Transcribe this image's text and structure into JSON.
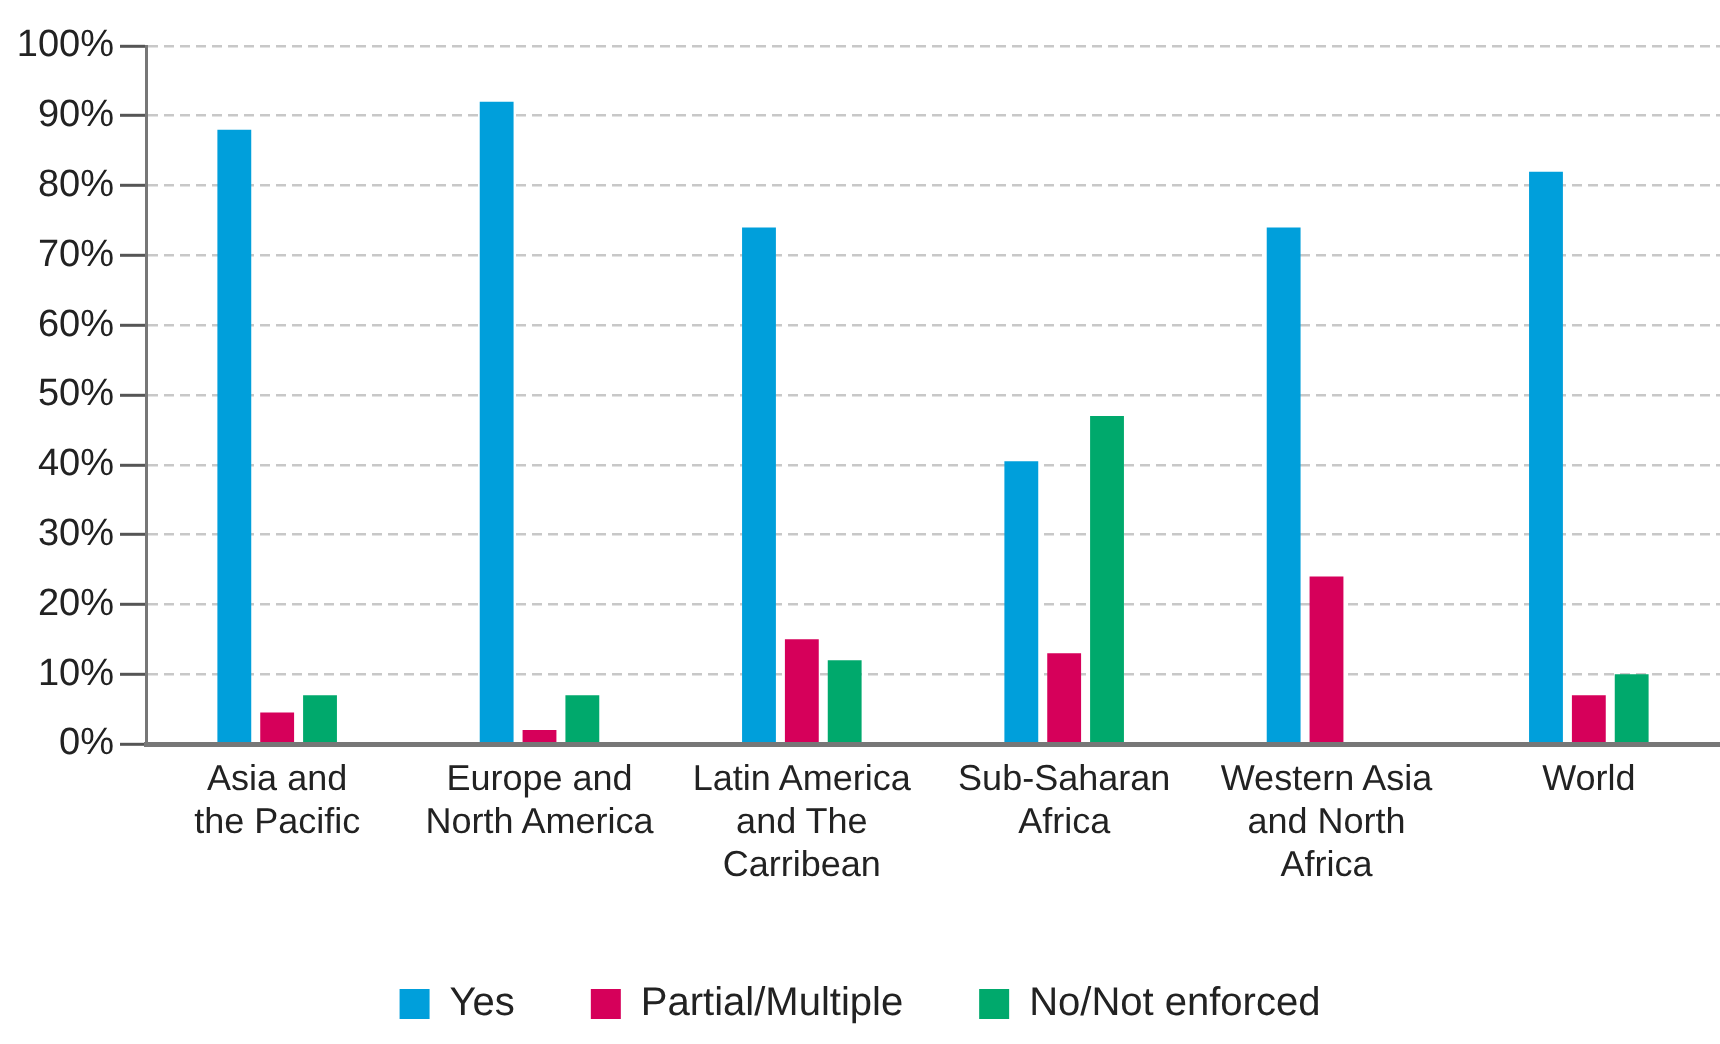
{
  "chart_data": {
    "type": "bar",
    "categories": [
      "Asia and\nthe Pacific",
      "Europe and\nNorth America",
      "Latin America\nand The\nCarribean",
      "Sub-Saharan\nAfrica",
      "Western Asia\nand North\nAfrica",
      "World"
    ],
    "series": [
      {
        "name": "Yes",
        "color": "#009fdb",
        "values": [
          88,
          92,
          74,
          40.5,
          74,
          82
        ]
      },
      {
        "name": "Partial/Multiple",
        "color": "#d6005a",
        "values": [
          4.5,
          2,
          15,
          13,
          24,
          7
        ]
      },
      {
        "name": "No/Not enforced",
        "color": "#00a96c",
        "values": [
          7,
          7,
          12,
          47,
          null,
          10
        ]
      }
    ],
    "ylim": [
      0,
      100
    ],
    "yticks": [
      {
        "value": 0,
        "label": "0%"
      },
      {
        "value": 10,
        "label": "10%"
      },
      {
        "value": 20,
        "label": "20%"
      },
      {
        "value": 30,
        "label": "30%"
      },
      {
        "value": 40,
        "label": "40%"
      },
      {
        "value": 50,
        "label": "50%"
      },
      {
        "value": 60,
        "label": "60%"
      },
      {
        "value": 70,
        "label": "70%"
      },
      {
        "value": 80,
        "label": "80%"
      },
      {
        "value": 90,
        "label": "90%"
      },
      {
        "value": 100,
        "label": "100%"
      }
    ],
    "grid": "y",
    "legend": "bottom"
  }
}
